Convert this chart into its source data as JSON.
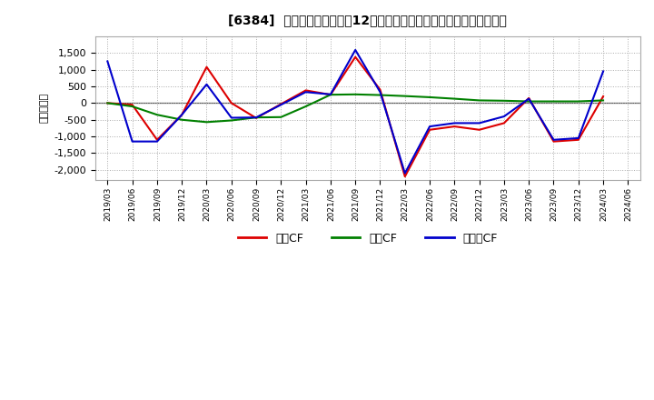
{
  "title": "[6384]  キャッシュフローの12か月移動合計の対前年同期増減額の推移",
  "ylabel": "（百万円）",
  "background_color": "#ffffff",
  "plot_bg_color": "#ffffff",
  "grid_color": "#aaaaaa",
  "x_labels": [
    "2019/03",
    "2019/06",
    "2019/09",
    "2019/12",
    "2020/03",
    "2020/06",
    "2020/09",
    "2020/12",
    "2021/03",
    "2021/06",
    "2021/09",
    "2021/12",
    "2022/03",
    "2022/06",
    "2022/09",
    "2022/12",
    "2023/03",
    "2023/06",
    "2023/09",
    "2023/12",
    "2024/03",
    "2024/06"
  ],
  "series": {
    "営業CF": {
      "color": "#dd0000",
      "values": [
        0,
        -50,
        -1100,
        -350,
        1080,
        0,
        -450,
        -30,
        380,
        250,
        1380,
        400,
        -2200,
        -800,
        -700,
        -800,
        -600,
        150,
        -1150,
        -1100,
        200,
        null
      ]
    },
    "投資CF": {
      "color": "#008000",
      "values": [
        0,
        -100,
        -350,
        -500,
        -570,
        -520,
        -430,
        -420,
        -100,
        250,
        260,
        240,
        210,
        175,
        130,
        80,
        70,
        50,
        50,
        50,
        80,
        null
      ]
    },
    "フリーCF": {
      "color": "#0000cc",
      "values": [
        1250,
        -1150,
        -1150,
        -350,
        560,
        -440,
        -430,
        -50,
        330,
        260,
        1590,
        330,
        -2100,
        -700,
        -600,
        -600,
        -400,
        130,
        -1100,
        -1050,
        950,
        null
      ]
    }
  },
  "ylim": [
    -2300,
    2000
  ],
  "yticks": [
    -2000,
    -1500,
    -1000,
    -500,
    0,
    500,
    1000,
    1500
  ],
  "legend_labels": [
    "営業CF",
    "投資CF",
    "フリーCF"
  ],
  "legend_colors": [
    "#dd0000",
    "#008000",
    "#0000cc"
  ]
}
